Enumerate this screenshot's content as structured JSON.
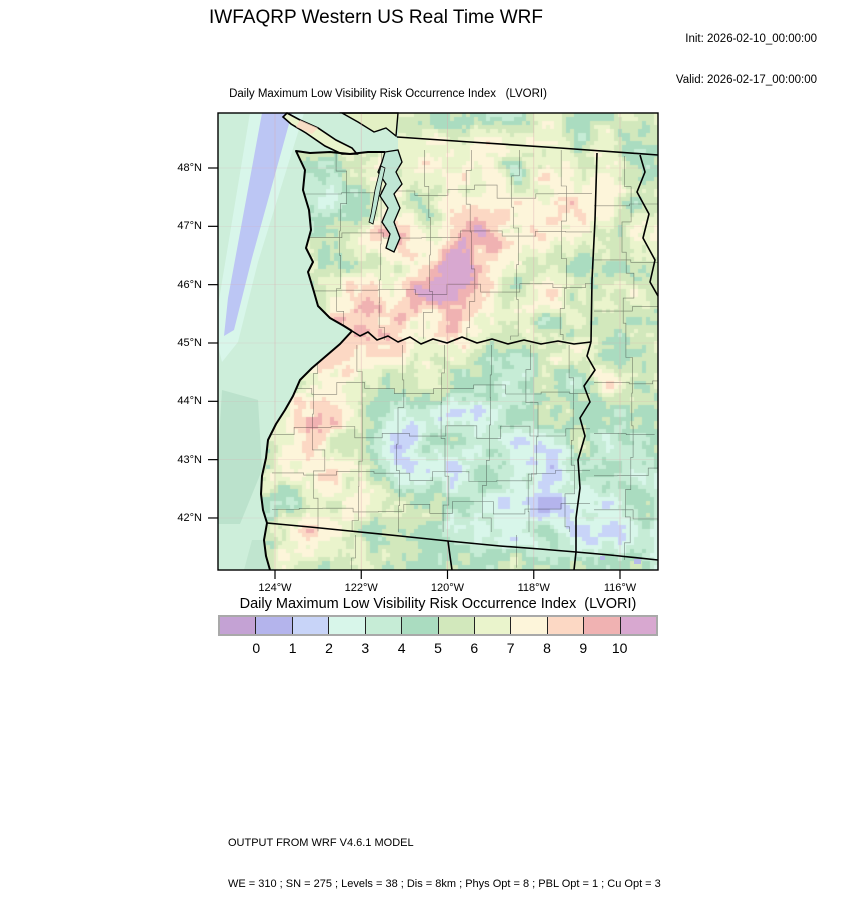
{
  "header": {
    "title": "IWFAQRP Western US Real Time WRF",
    "init": "Init: 2026-02-10_00:00:00",
    "valid": "Valid: 2026-02-17_00:00:00"
  },
  "plot": {
    "top_title": "Daily Maximum Low Visibility Risk Occurrence Index   (LVORI)"
  },
  "axes": {
    "lat_labels": [
      "48°N",
      "47°N",
      "46°N",
      "45°N",
      "44°N",
      "43°N",
      "42°N"
    ],
    "lon_labels": [
      "124°W",
      "122°W",
      "120°W",
      "118°W",
      "116°W"
    ]
  },
  "colorbar": {
    "title": "Daily Maximum Low Visibility Risk Occurrence Index  (LVORI)",
    "tick_labels": [
      "0",
      "1",
      "2",
      "3",
      "4",
      "5",
      "6",
      "7",
      "8",
      "9",
      "10"
    ],
    "colors": [
      "#c4a2d4",
      "#b4b4ec",
      "#c8d4f8",
      "#d8f6ea",
      "#c6ecd6",
      "#aadcc0",
      "#d2e8bc",
      "#eaf4cc",
      "#fdf5da",
      "#fcd8c4",
      "#f0b2b2",
      "#d8a8d0"
    ]
  },
  "footer": {
    "line1": "OUTPUT FROM WRF V4.6.1 MODEL",
    "line2": "WE = 310 ; SN = 275 ; Levels = 38 ; Dis = 8km ; Phys Opt = 8 ; PBL Opt = 1 ; Cu Opt = 3"
  },
  "chart_data": {
    "type": "heatmap",
    "title": "Daily Maximum Low Visibility Risk Occurrence Index (LVORI)",
    "value_range": [
      0,
      10
    ],
    "levels": [
      0,
      1,
      2,
      3,
      4,
      5,
      6,
      7,
      8,
      9,
      10
    ],
    "palette": [
      "#c4a2d4",
      "#b4b4ec",
      "#c8d4f8",
      "#d8f6ea",
      "#c6ecd6",
      "#aadcc0",
      "#d2e8bc",
      "#eaf4cc",
      "#fdf5da",
      "#fcd8c4",
      "#f0b2b2",
      "#d8a8d0"
    ],
    "legend_position": "bottom",
    "region": {
      "lat_ticks_deg_n": [
        48,
        47,
        46,
        45,
        44,
        43,
        42
      ],
      "lon_ticks_deg_w": [
        124,
        122,
        120,
        118,
        116
      ]
    }
  }
}
